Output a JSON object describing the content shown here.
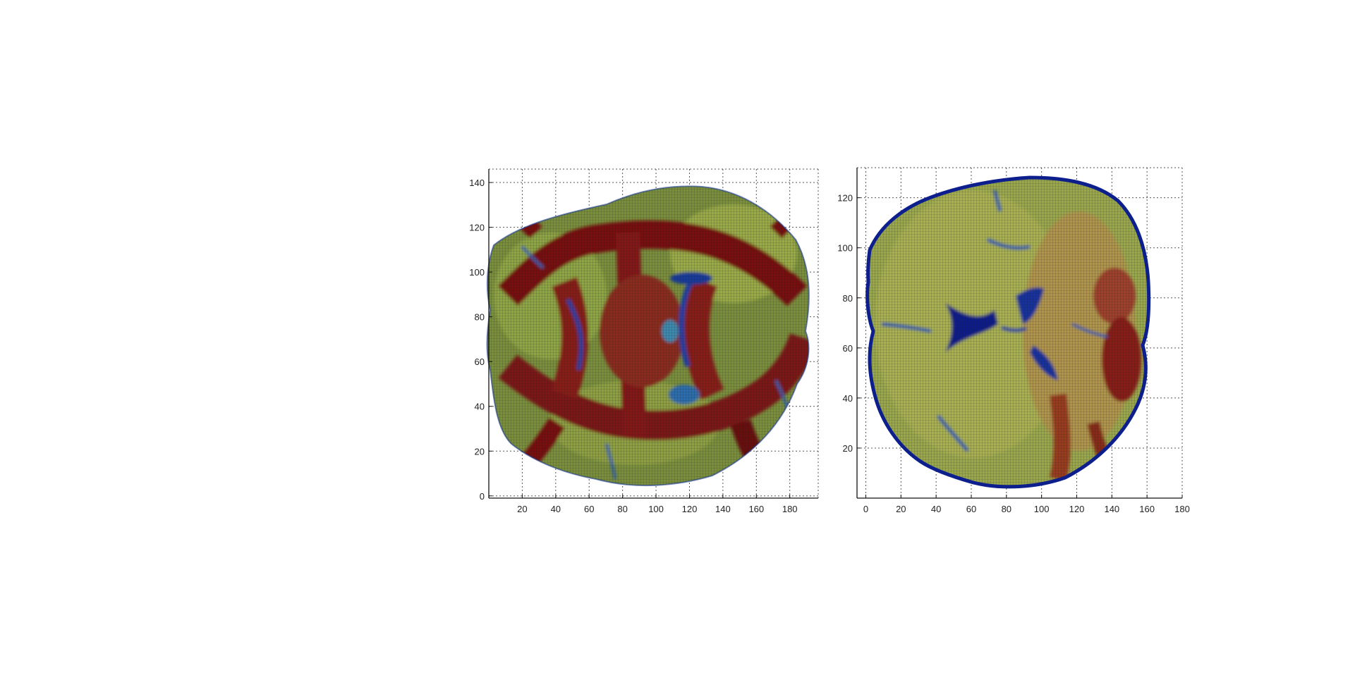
{
  "chart_data": [
    {
      "type": "heatmap",
      "title": "",
      "xlabel": "",
      "ylabel": "",
      "xlim": [
        0,
        197
      ],
      "ylim": [
        -1,
        146
      ],
      "xticks": [
        20,
        40,
        60,
        80,
        100,
        120,
        140,
        160,
        180
      ],
      "yticks": [
        0,
        20,
        40,
        60,
        80,
        100,
        120,
        140
      ],
      "grid": true,
      "grid_style": "dotted",
      "colormap": "jet",
      "view": "axial brain slice"
    },
    {
      "type": "heatmap",
      "title": "",
      "xlabel": "",
      "ylabel": "",
      "xlim": [
        -5,
        180
      ],
      "ylim": [
        0,
        132
      ],
      "xticks": [
        0,
        20,
        40,
        60,
        80,
        100,
        120,
        140,
        160,
        180
      ],
      "yticks": [
        20,
        40,
        60,
        80,
        100,
        120
      ],
      "grid": true,
      "grid_style": "dotted",
      "colormap": "jet",
      "view": "coronal brain slice"
    }
  ]
}
